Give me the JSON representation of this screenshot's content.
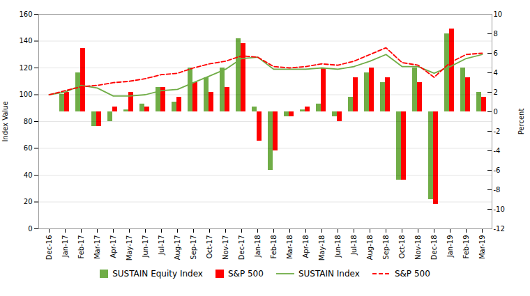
{
  "chart_data": {
    "type": "bar",
    "categories": [
      "Dec-16",
      "Jan-17",
      "Feb-17",
      "Mar-17",
      "Apr-17",
      "May-17",
      "Jun-17",
      "Jul-17",
      "Aug-17",
      "Sep-17",
      "Oct-17",
      "Nov-17",
      "Dec-17",
      "Jan-18",
      "Feb-18",
      "Mar-18",
      "Apr-18",
      "May-18",
      "Jun-18",
      "Jul-18",
      "Aug-18",
      "Sep-18",
      "Oct-18",
      "Nov-18",
      "Dec-18",
      "Jan-19",
      "Feb-19",
      "Mar-19"
    ],
    "series": [
      {
        "name": "SUSTAIN Equity Index",
        "type": "bar",
        "axis": "y2",
        "color": "#70AD47",
        "values": [
          0,
          1.8,
          4.0,
          -1.5,
          -1.0,
          0.2,
          0.8,
          2.5,
          1.0,
          4.5,
          3.5,
          4.5,
          7.5,
          0.5,
          -6.0,
          -0.5,
          0.2,
          0.8,
          -0.5,
          1.5,
          4.0,
          3.0,
          -7.0,
          4.5,
          -9.0,
          8.0,
          4.5,
          2.0
        ]
      },
      {
        "name": "S&P 500",
        "type": "bar",
        "axis": "y2",
        "color": "#FF0000",
        "values": [
          0,
          2.0,
          6.5,
          -1.5,
          0.5,
          2.0,
          0.5,
          2.5,
          1.5,
          3.0,
          2.0,
          2.5,
          7.0,
          -3.0,
          -4.0,
          -0.5,
          0.5,
          4.5,
          -1.0,
          3.5,
          4.5,
          3.5,
          -7.0,
          3.0,
          -9.5,
          8.5,
          3.5,
          1.5
        ]
      },
      {
        "name": "SUSTAIN Index",
        "type": "line",
        "color": "#70AD47",
        "line_style": "solid",
        "values": [
          100,
          102,
          107,
          105,
          99,
          99,
          100,
          103,
          104,
          109,
          114,
          119,
          127,
          128,
          119,
          119,
          119,
          120,
          119,
          121,
          125,
          130,
          121,
          121,
          116,
          121,
          127,
          130
        ]
      },
      {
        "name": "S&P 500",
        "type": "line",
        "color": "#FF0000",
        "line_style": "dashed",
        "values": [
          100,
          103,
          106,
          107,
          109,
          110,
          112,
          115,
          116,
          120,
          123,
          125,
          129,
          128,
          121,
          120,
          121,
          123,
          122,
          125,
          130,
          135,
          124,
          122,
          113,
          124,
          130,
          131
        ]
      }
    ],
    "ylabel": "Index Value",
    "y2label": "Percent",
    "ylim": [
      0,
      160
    ],
    "yticks": [
      0,
      20,
      40,
      60,
      80,
      100,
      120,
      140,
      160
    ],
    "y2lim": [
      -12,
      10
    ],
    "y2ticks": [
      -12,
      -10,
      -8,
      -6,
      -4,
      -2,
      0,
      2,
      4,
      6,
      8,
      10
    ],
    "grid": true,
    "legend": "bottom"
  }
}
